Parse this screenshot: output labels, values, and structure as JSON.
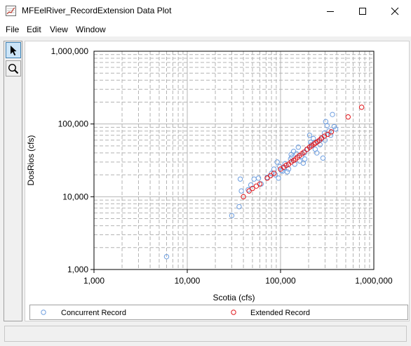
{
  "window": {
    "title": "MFEelRiver_RecordExtension Data Plot"
  },
  "menu": {
    "file": "File",
    "edit": "Edit",
    "view": "View",
    "window": "Window"
  },
  "icons": {
    "app": "plot-app-icon",
    "minimize": "minimize-icon",
    "maximize": "maximize-icon",
    "close": "close-icon",
    "pointer": "pointer-arrow-icon",
    "zoom": "magnifier-icon"
  },
  "colors": {
    "concurrent": "#6f9fe0",
    "extended": "#e0161b",
    "grid": "#b4b4b4"
  },
  "chart_data": {
    "type": "scatter",
    "xscale": "log",
    "yscale": "log",
    "xlim": [
      1000,
      1000000
    ],
    "ylim": [
      1000,
      1000000
    ],
    "xlabel": "Scotia (cfs)",
    "ylabel": "DosRios (cfs)",
    "xticks": [
      "1,000",
      "10,000",
      "100,000",
      "1,000,000"
    ],
    "yticks": [
      "1,000",
      "10,000",
      "100,000",
      "1,000,000"
    ],
    "grid": true,
    "legend_position": "bottom",
    "series": [
      {
        "name": "Concurrent Record",
        "color": "#6f9fe0",
        "marker": "circle-open",
        "points": [
          [
            6000,
            1500
          ],
          [
            30000,
            5500
          ],
          [
            36000,
            7300
          ],
          [
            38000,
            12000
          ],
          [
            37000,
            17500
          ],
          [
            45000,
            12500
          ],
          [
            48000,
            14500
          ],
          [
            52000,
            17500
          ],
          [
            58000,
            18000
          ],
          [
            62000,
            15000
          ],
          [
            72000,
            18500
          ],
          [
            80000,
            21000
          ],
          [
            85000,
            24000
          ],
          [
            88000,
            20000
          ],
          [
            92000,
            30000
          ],
          [
            95000,
            18000
          ],
          [
            98000,
            26000
          ],
          [
            102000,
            23000
          ],
          [
            105000,
            22500
          ],
          [
            110000,
            25000
          ],
          [
            112000,
            28500
          ],
          [
            118000,
            22000
          ],
          [
            122000,
            24000
          ],
          [
            128000,
            33000
          ],
          [
            132000,
            35000
          ],
          [
            138000,
            42000
          ],
          [
            142000,
            28000
          ],
          [
            148000,
            39000
          ],
          [
            155000,
            48000
          ],
          [
            160000,
            31000
          ],
          [
            168000,
            36000
          ],
          [
            175000,
            29000
          ],
          [
            182000,
            33000
          ],
          [
            195000,
            45000
          ],
          [
            205000,
            70000
          ],
          [
            215000,
            52000
          ],
          [
            225000,
            63000
          ],
          [
            235000,
            45000
          ],
          [
            245000,
            40000
          ],
          [
            255000,
            58000
          ],
          [
            265000,
            52000
          ],
          [
            275000,
            62000
          ],
          [
            285000,
            34000
          ],
          [
            295000,
            75000
          ],
          [
            305000,
            108000
          ],
          [
            315000,
            95000
          ],
          [
            330000,
            80000
          ],
          [
            345000,
            70000
          ],
          [
            360000,
            135000
          ],
          [
            375000,
            92000
          ],
          [
            390000,
            85000
          ],
          [
            300000,
            60000
          ],
          [
            180000,
            40000
          ],
          [
            130000,
            38000
          ],
          [
            210000,
            56000
          ]
        ]
      },
      {
        "name": "Extended Record",
        "color": "#e0161b",
        "marker": "circle-open",
        "points": [
          [
            40000,
            10000
          ],
          [
            46000,
            12000
          ],
          [
            50000,
            13000
          ],
          [
            55000,
            14000
          ],
          [
            60000,
            15000
          ],
          [
            72000,
            18000
          ],
          [
            78000,
            19500
          ],
          [
            85000,
            21000
          ],
          [
            100000,
            24000
          ],
          [
            108000,
            25500
          ],
          [
            115000,
            27000
          ],
          [
            122000,
            28000
          ],
          [
            130000,
            30000
          ],
          [
            138000,
            31500
          ],
          [
            145000,
            33000
          ],
          [
            152000,
            35000
          ],
          [
            160000,
            37000
          ],
          [
            170000,
            39000
          ],
          [
            178000,
            41000
          ],
          [
            192000,
            45000
          ],
          [
            205000,
            48000
          ],
          [
            215000,
            50000
          ],
          [
            228000,
            53000
          ],
          [
            238000,
            55000
          ],
          [
            248000,
            57000
          ],
          [
            262000,
            60000
          ],
          [
            275000,
            64000
          ],
          [
            295000,
            68000
          ],
          [
            320000,
            72000
          ],
          [
            350000,
            78000
          ],
          [
            530000,
            125000
          ],
          [
            740000,
            170000
          ]
        ]
      }
    ]
  },
  "legend": {
    "concurrent_label": "Concurrent Record",
    "extended_label": "Extended Record"
  }
}
